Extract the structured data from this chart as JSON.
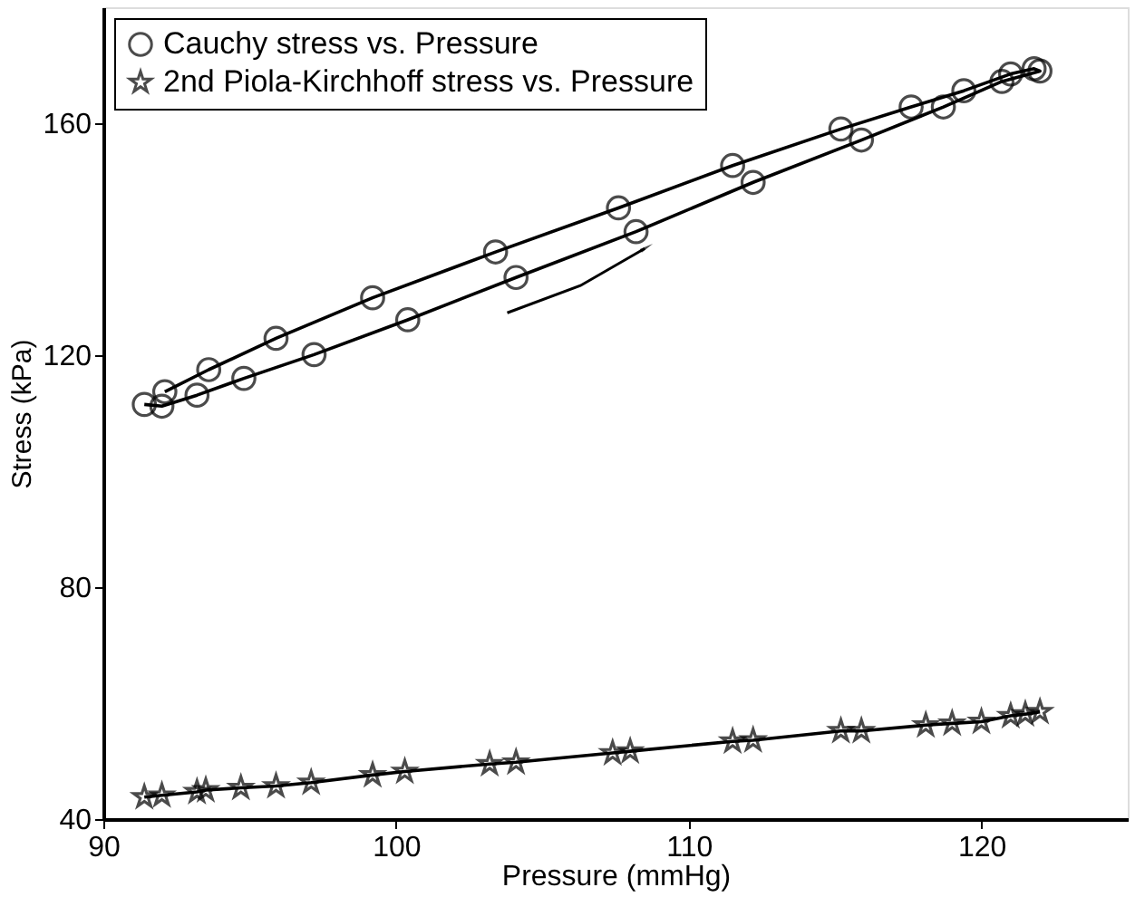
{
  "chart_data": {
    "type": "line",
    "xlabel": "Pressure (mmHg)",
    "ylabel": "Stress (kPa)",
    "xlim": [
      90,
      125
    ],
    "xticks": [
      90,
      100,
      110,
      120
    ],
    "ylim": [
      40,
      180
    ],
    "yticks": [
      40,
      80,
      120,
      160
    ],
    "grid": false,
    "legend": "top left",
    "series": [
      {
        "name": "Cauchy stress vs. Pressure",
        "color": "#000000",
        "marker": "circle",
        "line_style": "solid",
        "x": [
          91.4,
          92.0,
          93.2,
          94.8,
          97.2,
          100.4,
          104.1,
          108.2,
          112.2,
          115.9,
          118.7,
          120.7,
          122.0,
          121.8,
          121.0,
          119.4,
          117.6,
          115.2,
          111.5,
          107.6,
          103.4,
          99.2,
          95.9,
          93.6,
          92.1
        ],
        "values": [
          111.5,
          111.2,
          113.1,
          116.0,
          120.1,
          126.1,
          133.4,
          141.3,
          149.8,
          157.1,
          162.8,
          167.2,
          169.0,
          169.4,
          168.5,
          165.6,
          162.8,
          159.0,
          152.7,
          145.4,
          137.8,
          129.9,
          122.9,
          117.5,
          113.7
        ]
      },
      {
        "name": "2nd Piola-Kirchhoff stress vs. Pressure",
        "color": "#000000",
        "marker": "star",
        "line_style": "solid",
        "x": [
          91.4,
          92.0,
          93.2,
          93.5,
          94.7,
          95.9,
          97.1,
          99.2,
          100.3,
          103.2,
          104.1,
          107.4,
          108.0,
          111.5,
          112.2,
          115.2,
          115.9,
          118.1,
          119.0,
          120.0,
          121.0,
          121.5,
          122.0
        ],
        "values": [
          43.8,
          44.1,
          44.7,
          45.0,
          45.4,
          45.7,
          46.3,
          47.6,
          48.2,
          49.5,
          49.8,
          51.4,
          51.7,
          53.4,
          53.6,
          55.2,
          55.2,
          56.2,
          56.5,
          56.8,
          57.8,
          58.1,
          58.5
        ]
      }
    ]
  }
}
